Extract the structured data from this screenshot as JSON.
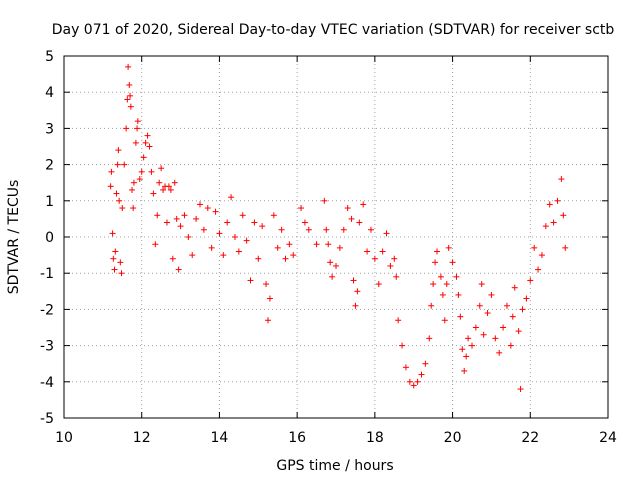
{
  "chart_data": {
    "type": "scatter",
    "title": "Day 071 of 2020, Sidereal Day-to-day VTEC variation (SDTVAR) for receiver sctb",
    "xlabel": "GPS time / hours",
    "ylabel": "SDTVAR / TECUs",
    "xlim": [
      10,
      24
    ],
    "ylim": [
      -5,
      5
    ],
    "xticks": [
      10,
      12,
      14,
      16,
      18,
      20,
      22,
      24
    ],
    "yticks": [
      -5,
      -4,
      -3,
      -2,
      -1,
      0,
      1,
      2,
      3,
      4,
      5
    ],
    "grid": true,
    "marker": "+",
    "color": "#ff0000",
    "series": [
      {
        "name": "SDTVAR",
        "points": [
          [
            11.2,
            1.4
          ],
          [
            11.22,
            1.8
          ],
          [
            11.25,
            0.1
          ],
          [
            11.27,
            -0.6
          ],
          [
            11.3,
            -0.9
          ],
          [
            11.32,
            -0.4
          ],
          [
            11.35,
            1.2
          ],
          [
            11.38,
            2.0
          ],
          [
            11.4,
            2.4
          ],
          [
            11.42,
            1.0
          ],
          [
            11.45,
            -0.7
          ],
          [
            11.48,
            -1.0
          ],
          [
            11.5,
            0.8
          ],
          [
            11.55,
            2.0
          ],
          [
            11.6,
            3.0
          ],
          [
            11.63,
            3.8
          ],
          [
            11.65,
            4.7
          ],
          [
            11.68,
            4.2
          ],
          [
            11.7,
            3.9
          ],
          [
            11.72,
            3.6
          ],
          [
            11.75,
            1.3
          ],
          [
            11.78,
            0.8
          ],
          [
            11.8,
            1.5
          ],
          [
            11.85,
            2.6
          ],
          [
            11.88,
            3.0
          ],
          [
            11.9,
            3.2
          ],
          [
            11.95,
            1.6
          ],
          [
            12.0,
            1.8
          ],
          [
            12.05,
            2.2
          ],
          [
            12.1,
            2.6
          ],
          [
            12.15,
            2.8
          ],
          [
            12.2,
            2.5
          ],
          [
            12.25,
            1.8
          ],
          [
            12.3,
            1.2
          ],
          [
            12.35,
            -0.2
          ],
          [
            12.4,
            0.6
          ],
          [
            12.45,
            1.5
          ],
          [
            12.5,
            1.9
          ],
          [
            12.55,
            1.3
          ],
          [
            12.6,
            1.4
          ],
          [
            12.65,
            0.4
          ],
          [
            12.7,
            1.4
          ],
          [
            12.75,
            1.3
          ],
          [
            12.8,
            -0.6
          ],
          [
            12.85,
            1.5
          ],
          [
            12.9,
            0.5
          ],
          [
            12.95,
            -0.9
          ],
          [
            13.0,
            0.3
          ],
          [
            13.1,
            0.6
          ],
          [
            13.2,
            0.0
          ],
          [
            13.3,
            -0.5
          ],
          [
            13.4,
            0.5
          ],
          [
            13.5,
            0.9
          ],
          [
            13.6,
            0.2
          ],
          [
            13.7,
            0.8
          ],
          [
            13.8,
            -0.3
          ],
          [
            13.9,
            0.7
          ],
          [
            14.0,
            0.1
          ],
          [
            14.1,
            -0.5
          ],
          [
            14.2,
            0.4
          ],
          [
            14.3,
            1.1
          ],
          [
            14.4,
            0.0
          ],
          [
            14.5,
            -0.4
          ],
          [
            14.6,
            0.6
          ],
          [
            14.7,
            -0.1
          ],
          [
            14.8,
            -1.2
          ],
          [
            14.9,
            0.4
          ],
          [
            15.0,
            -0.6
          ],
          [
            15.1,
            0.3
          ],
          [
            15.2,
            -1.3
          ],
          [
            15.25,
            -2.3
          ],
          [
            15.3,
            -1.7
          ],
          [
            15.4,
            0.6
          ],
          [
            15.5,
            -0.3
          ],
          [
            15.6,
            0.2
          ],
          [
            15.7,
            -0.6
          ],
          [
            15.8,
            -0.2
          ],
          [
            15.9,
            -0.5
          ],
          [
            16.1,
            0.8
          ],
          [
            16.2,
            0.4
          ],
          [
            16.3,
            0.2
          ],
          [
            16.5,
            -0.2
          ],
          [
            16.7,
            1.0
          ],
          [
            16.75,
            0.2
          ],
          [
            16.8,
            -0.2
          ],
          [
            16.85,
            -0.7
          ],
          [
            16.9,
            -1.1
          ],
          [
            17.0,
            -0.8
          ],
          [
            17.1,
            -0.3
          ],
          [
            17.2,
            0.2
          ],
          [
            17.3,
            0.8
          ],
          [
            17.4,
            0.5
          ],
          [
            17.45,
            -1.2
          ],
          [
            17.5,
            -1.9
          ],
          [
            17.55,
            -1.5
          ],
          [
            17.6,
            0.4
          ],
          [
            17.7,
            0.9
          ],
          [
            17.8,
            -0.4
          ],
          [
            17.9,
            0.2
          ],
          [
            18.0,
            -0.6
          ],
          [
            18.1,
            -1.3
          ],
          [
            18.2,
            -0.4
          ],
          [
            18.3,
            0.1
          ],
          [
            18.4,
            -0.8
          ],
          [
            18.5,
            -0.6
          ],
          [
            18.55,
            -1.1
          ],
          [
            18.6,
            -2.3
          ],
          [
            18.7,
            -3.0
          ],
          [
            18.8,
            -3.6
          ],
          [
            18.9,
            -4.0
          ],
          [
            19.0,
            -4.1
          ],
          [
            19.1,
            -4.0
          ],
          [
            19.2,
            -3.8
          ],
          [
            19.3,
            -3.5
          ],
          [
            19.4,
            -2.8
          ],
          [
            19.45,
            -1.9
          ],
          [
            19.5,
            -1.3
          ],
          [
            19.55,
            -0.7
          ],
          [
            19.6,
            -0.4
          ],
          [
            19.7,
            -1.1
          ],
          [
            19.75,
            -1.6
          ],
          [
            19.8,
            -2.3
          ],
          [
            19.85,
            -1.3
          ],
          [
            19.9,
            -0.3
          ],
          [
            20.0,
            -0.7
          ],
          [
            20.1,
            -1.1
          ],
          [
            20.15,
            -1.6
          ],
          [
            20.2,
            -2.2
          ],
          [
            20.25,
            -3.1
          ],
          [
            20.3,
            -3.7
          ],
          [
            20.35,
            -3.3
          ],
          [
            20.4,
            -2.8
          ],
          [
            20.5,
            -3.0
          ],
          [
            20.6,
            -2.5
          ],
          [
            20.7,
            -1.9
          ],
          [
            20.75,
            -1.3
          ],
          [
            20.8,
            -2.7
          ],
          [
            20.9,
            -2.1
          ],
          [
            21.0,
            -1.6
          ],
          [
            21.1,
            -2.8
          ],
          [
            21.2,
            -3.2
          ],
          [
            21.3,
            -2.5
          ],
          [
            21.4,
            -1.9
          ],
          [
            21.5,
            -3.0
          ],
          [
            21.55,
            -2.2
          ],
          [
            21.6,
            -1.4
          ],
          [
            21.7,
            -2.6
          ],
          [
            21.75,
            -4.2
          ],
          [
            21.8,
            -2.0
          ],
          [
            21.9,
            -1.7
          ],
          [
            22.0,
            -1.2
          ],
          [
            22.1,
            -0.3
          ],
          [
            22.2,
            -0.9
          ],
          [
            22.3,
            -0.5
          ],
          [
            22.4,
            0.3
          ],
          [
            22.5,
            0.9
          ],
          [
            22.6,
            0.4
          ],
          [
            22.7,
            1.0
          ],
          [
            22.8,
            1.6
          ],
          [
            22.85,
            0.6
          ],
          [
            22.9,
            -0.3
          ]
        ]
      }
    ]
  }
}
